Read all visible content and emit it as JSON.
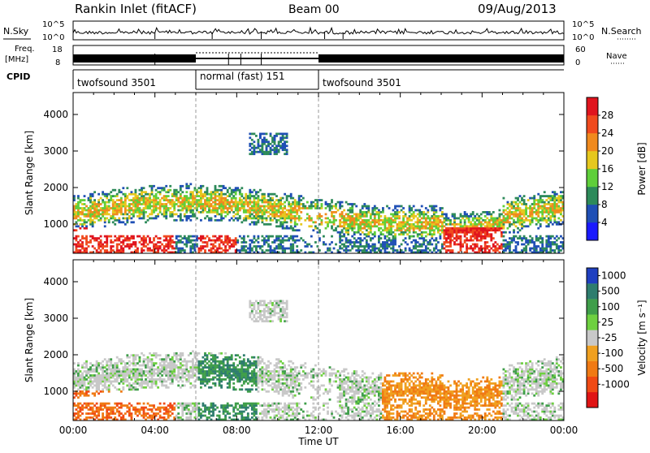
{
  "header": {
    "title": "Rankin Inlet (fitACF)",
    "beam": "Beam 00",
    "date": "09/Aug/2013"
  },
  "strips": {
    "noise_left_label": "N.Sky",
    "noise_right_label": "N.Search",
    "noise_left_ticks": [
      "10^5",
      "10^0"
    ],
    "noise_right_ticks": [
      "10^5",
      "10^0"
    ],
    "freq_label_line1": "Freq.",
    "freq_label_line2": "[MHz]",
    "freq_ticks": [
      "18",
      "8"
    ],
    "nave_label": "Nave",
    "nave_ticks": [
      "60",
      "0"
    ],
    "cpid_label": "CPID"
  },
  "modes": [
    {
      "name": "twofsound 3501",
      "start": 0,
      "end": 6
    },
    {
      "name": "normal (fast) 151",
      "start": 6,
      "end": 12
    },
    {
      "name": "twofsound 3501",
      "start": 12,
      "end": 24
    }
  ],
  "chart_data": [
    {
      "type": "heatmap",
      "name": "power-panel",
      "ylabel": "Slant Range [km]",
      "xlim": [
        0,
        24
      ],
      "ylim": [
        200,
        4600
      ],
      "y_ticks": [
        "1000",
        "2000",
        "3000",
        "4000"
      ],
      "colorbar_label": "Power [dB]",
      "colorbar_ticks": [
        "4",
        "8",
        "12",
        "16",
        "20",
        "24",
        "28"
      ],
      "colorbar_colors": [
        "#1a1aff",
        "#1f4fb5",
        "#2d8a5a",
        "#5fcf3a",
        "#e6c81e",
        "#f08a1e",
        "#f04a1e",
        "#e0141e"
      ]
    },
    {
      "type": "heatmap",
      "name": "velocity-panel",
      "ylabel": "Slant Range [km]",
      "xlabel": "Time UT",
      "xlim": [
        0,
        24
      ],
      "ylim": [
        200,
        4600
      ],
      "y_ticks": [
        "1000",
        "2000",
        "3000",
        "4000"
      ],
      "x_ticks": [
        "00:00",
        "04:00",
        "08:00",
        "12:00",
        "16:00",
        "20:00",
        "00:00"
      ],
      "colorbar_label": "Velocity [m s⁻¹]",
      "colorbar_ticks": [
        "1000",
        "500",
        "100",
        "25",
        "-25",
        "-100",
        "-500",
        "-1000"
      ],
      "colorbar_colors": [
        "#1f3fc0",
        "#2e7d6e",
        "#3f9e4a",
        "#6ed040",
        "#c8c8c8",
        "#f0a020",
        "#f07a14",
        "#f04a14",
        "#e01414"
      ]
    }
  ]
}
